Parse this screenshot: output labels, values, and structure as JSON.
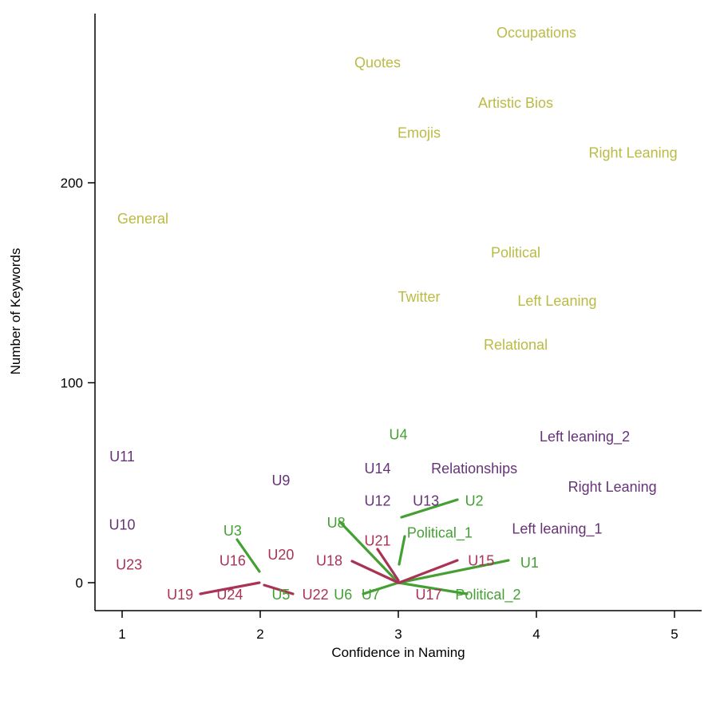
{
  "chart_data": {
    "type": "scatter",
    "title": "",
    "xlabel": "Confidence in Naming",
    "ylabel": "Number of Keywords",
    "xlim": [
      0.8,
      5.2
    ],
    "ylim": [
      -14,
      283
    ],
    "xticks": [
      1,
      2,
      3,
      4,
      5
    ],
    "yticks": [
      0,
      100,
      200
    ],
    "grid": false,
    "legend": "none",
    "colors": {
      "gold": "#BBBB44",
      "purple": "#663377",
      "green": "#44A033",
      "red": "#AA3355"
    },
    "series": [
      {
        "color": "gold",
        "points": [
          {
            "label": "Occupations",
            "x": 4.0,
            "y": 275
          },
          {
            "label": "Quotes",
            "x": 2.85,
            "y": 260
          },
          {
            "label": "Artistic Bios",
            "x": 3.85,
            "y": 240
          },
          {
            "label": "Emojis",
            "x": 3.15,
            "y": 225
          },
          {
            "label": "Right Leaning",
            "x": 4.7,
            "y": 215
          },
          {
            "label": "General",
            "x": 1.15,
            "y": 182
          },
          {
            "label": "Political",
            "x": 3.85,
            "y": 165
          },
          {
            "label": "Twitter",
            "x": 3.15,
            "y": 143
          },
          {
            "label": "Left Leaning",
            "x": 4.15,
            "y": 141
          },
          {
            "label": "Relational",
            "x": 3.85,
            "y": 119
          }
        ]
      },
      {
        "color": "purple",
        "points": [
          {
            "label": "Left leaning_2",
            "x": 4.35,
            "y": 73
          },
          {
            "label": "U11",
            "x": 1.0,
            "y": 63
          },
          {
            "label": "U14",
            "x": 2.85,
            "y": 57
          },
          {
            "label": "Relationships",
            "x": 3.55,
            "y": 57
          },
          {
            "label": "U9",
            "x": 2.15,
            "y": 51
          },
          {
            "label": "Right Leaning",
            "x": 4.55,
            "y": 48
          },
          {
            "label": "U12",
            "x": 2.85,
            "y": 41
          },
          {
            "label": "U13",
            "x": 3.2,
            "y": 41
          },
          {
            "label": "Left leaning_1",
            "x": 4.15,
            "y": 27
          },
          {
            "label": "U10",
            "x": 1.0,
            "y": 29
          }
        ]
      },
      {
        "color": "green",
        "points": [
          {
            "label": "U4",
            "x": 3.0,
            "y": 74
          },
          {
            "label": "U2",
            "x": 3.55,
            "y": 41
          },
          {
            "label": "U8",
            "x": 2.55,
            "y": 30
          },
          {
            "label": "U3",
            "x": 1.8,
            "y": 26
          },
          {
            "label": "Political_1",
            "x": 3.3,
            "y": 25
          },
          {
            "label": "U1",
            "x": 3.95,
            "y": 10
          },
          {
            "label": "U5",
            "x": 2.15,
            "y": -6
          },
          {
            "label": "U6",
            "x": 2.6,
            "y": -6
          },
          {
            "label": "U7",
            "x": 2.8,
            "y": -6
          },
          {
            "label": "Political_2",
            "x": 3.65,
            "y": -6
          }
        ]
      },
      {
        "color": "red",
        "points": [
          {
            "label": "U21",
            "x": 2.85,
            "y": 21
          },
          {
            "label": "U20",
            "x": 2.15,
            "y": 14
          },
          {
            "label": "U16",
            "x": 1.8,
            "y": 11
          },
          {
            "label": "U18",
            "x": 2.5,
            "y": 11
          },
          {
            "label": "U15",
            "x": 3.6,
            "y": 11
          },
          {
            "label": "U23",
            "x": 1.05,
            "y": 9
          },
          {
            "label": "U19",
            "x": 1.42,
            "y": -6
          },
          {
            "label": "U24",
            "x": 1.78,
            "y": -6
          },
          {
            "label": "U22",
            "x": 2.4,
            "y": -6
          },
          {
            "label": "U17",
            "x": 3.22,
            "y": -6
          }
        ]
      }
    ]
  }
}
